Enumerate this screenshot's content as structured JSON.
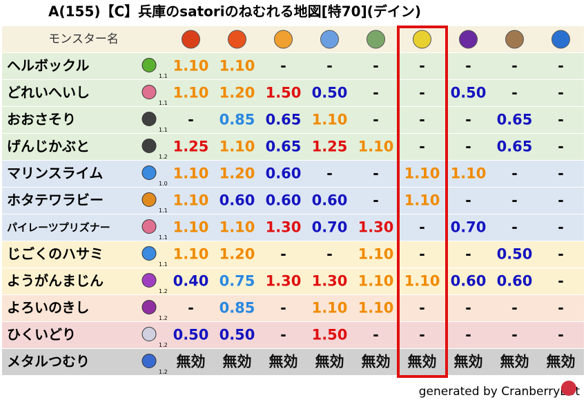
{
  "header": {
    "title": "A(155)【C】兵庫のsatoriのねむれる地図[特70](デイン)",
    "name_column": "モンスター名"
  },
  "table": {
    "rows": [
      {
        "name": "ヘルボックル",
        "level": "1.1",
        "cells": [
          "1.10",
          "1.10",
          "-",
          "-",
          "-",
          "-",
          "-",
          "-",
          "-"
        ]
      },
      {
        "name": "どれいへいし",
        "level": "1.1",
        "cells": [
          "1.10",
          "1.20",
          "1.50",
          "0.50",
          "-",
          "-",
          "0.50",
          "-",
          "-"
        ]
      },
      {
        "name": "おおさそり",
        "level": "1.1",
        "cells": [
          "-",
          "0.85",
          "0.65",
          "1.10",
          "-",
          "-",
          "-",
          "0.65",
          "-"
        ]
      },
      {
        "name": "げんじかぶと",
        "level": "1.2",
        "cells": [
          "1.25",
          "1.10",
          "0.65",
          "1.25",
          "1.10",
          "-",
          "-",
          "0.65",
          "-"
        ]
      },
      {
        "name": "マリンスライム",
        "level": "1.0",
        "cells": [
          "1.10",
          "1.20",
          "0.60",
          "-",
          "-",
          "1.10",
          "1.10",
          "-",
          "-"
        ]
      },
      {
        "name": "ホタテワラビー",
        "level": "1.1",
        "cells": [
          "1.10",
          "0.60",
          "0.60",
          "0.60",
          "-",
          "1.10",
          "-",
          "-",
          "-"
        ]
      },
      {
        "name": "パイレーツプリズナー",
        "level": "1.1",
        "cells": [
          "1.10",
          "1.10",
          "1.30",
          "0.70",
          "1.30",
          "-",
          "0.70",
          "-",
          "-"
        ]
      },
      {
        "name": "じごくのハサミ",
        "level": "1.1",
        "cells": [
          "1.10",
          "1.20",
          "-",
          "-",
          "1.10",
          "-",
          "-",
          "0.50",
          "-"
        ]
      },
      {
        "name": "ようがんまじん",
        "level": "1.2",
        "cells": [
          "0.40",
          "0.75",
          "1.30",
          "1.30",
          "1.10",
          "1.10",
          "0.60",
          "0.60",
          "-"
        ]
      },
      {
        "name": "よろいのきし",
        "level": "1.2",
        "cells": [
          "-",
          "0.85",
          "-",
          "1.10",
          "1.10",
          "-",
          "-",
          "-",
          "-"
        ]
      },
      {
        "name": "ひくいどり",
        "level": "1.2",
        "cells": [
          "0.50",
          "0.50",
          "-",
          "1.50",
          "-",
          "-",
          "-",
          "-",
          "-"
        ]
      },
      {
        "name": "メタルつむり",
        "level": "1.2",
        "cells": [
          "無効",
          "無効",
          "無効",
          "無効",
          "無効",
          "無効",
          "無効",
          "無効",
          "無効"
        ]
      }
    ]
  },
  "footer": {
    "credit": "generated by CranberryBot"
  }
}
